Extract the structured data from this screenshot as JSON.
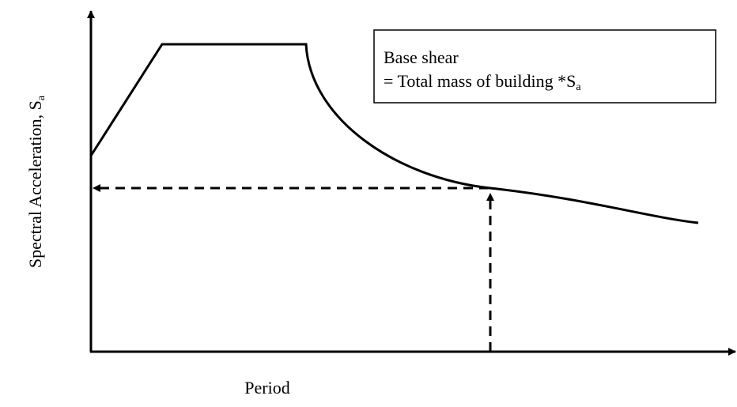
{
  "axes": {
    "y_label": {
      "text": "Spectral  Acceleration, S",
      "subscript": "a"
    },
    "x_label": "Period"
  },
  "note": {
    "line1": "Base shear",
    "line2": {
      "text": "= Total mass of building *S",
      "subscript": "a"
    }
  }
}
